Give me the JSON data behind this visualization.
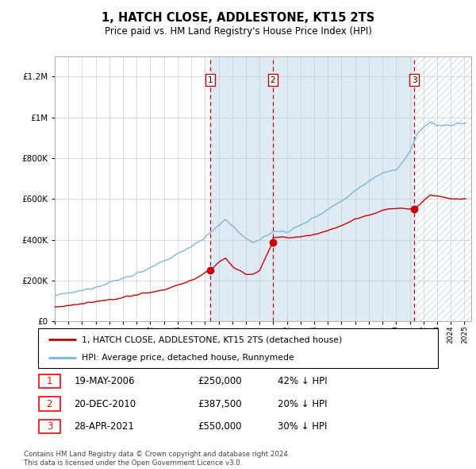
{
  "title": "1, HATCH CLOSE, ADDLESTONE, KT15 2TS",
  "subtitle": "Price paid vs. HM Land Registry's House Price Index (HPI)",
  "legend_line1": "1, HATCH CLOSE, ADDLESTONE, KT15 2TS (detached house)",
  "legend_line2": "HPI: Average price, detached house, Runnymede",
  "footnote1": "Contains HM Land Registry data © Crown copyright and database right 2024.",
  "footnote2": "This data is licensed under the Open Government Licence v3.0.",
  "sales": [
    {
      "num": 1,
      "date": "19-MAY-2006",
      "x": 2006.38,
      "price": 250000,
      "pct": "42% ↓ HPI"
    },
    {
      "num": 2,
      "date": "20-DEC-2010",
      "x": 2010.97,
      "price": 387500,
      "pct": "20% ↓ HPI"
    },
    {
      "num": 3,
      "date": "28-APR-2021",
      "x": 2021.32,
      "price": 550000,
      "pct": "30% ↓ HPI"
    }
  ],
  "hpi_color": "#7ab8d9",
  "sale_color": "#cc0000",
  "vline_color": "#cc0000",
  "shade_color": "#deeaf4",
  "grid_color": "#cccccc",
  "ylim": [
    0,
    1300000
  ],
  "xlim_start": 1995.0,
  "xlim_end": 2025.5,
  "yticks": [
    0,
    200000,
    400000,
    600000,
    800000,
    1000000,
    1200000
  ],
  "hpi_anchors_x": [
    1995,
    1997,
    2000,
    2002,
    2004,
    2005,
    2006,
    2007,
    2007.5,
    2008,
    2009,
    2009.5,
    2010,
    2011,
    2012,
    2013,
    2014,
    2015,
    2016,
    2017,
    2018,
    2019,
    2020,
    2021,
    2021.5,
    2022,
    2022.5,
    2023,
    2024,
    2024.5
  ],
  "hpi_anchors_y": [
    125000,
    150000,
    210000,
    260000,
    330000,
    370000,
    410000,
    470000,
    500000,
    470000,
    400000,
    390000,
    400000,
    440000,
    440000,
    470000,
    510000,
    550000,
    590000,
    640000,
    690000,
    730000,
    740000,
    830000,
    910000,
    950000,
    980000,
    960000,
    960000,
    970000
  ],
  "sale_anchors_x": [
    1995,
    1997,
    1999,
    2001,
    2003,
    2005,
    2006.38,
    2007,
    2007.5,
    2008,
    2009,
    2009.5,
    2010,
    2010.97,
    2011,
    2012,
    2013,
    2014,
    2015,
    2016,
    2017,
    2018,
    2019,
    2020,
    2021.32,
    2022,
    2022.5,
    2023,
    2024,
    2024.5
  ],
  "sale_anchors_y": [
    70000,
    85000,
    105000,
    130000,
    155000,
    200000,
    250000,
    290000,
    310000,
    270000,
    230000,
    230000,
    250000,
    387500,
    410000,
    410000,
    415000,
    425000,
    445000,
    470000,
    500000,
    520000,
    545000,
    555000,
    550000,
    590000,
    620000,
    615000,
    600000,
    600000
  ]
}
